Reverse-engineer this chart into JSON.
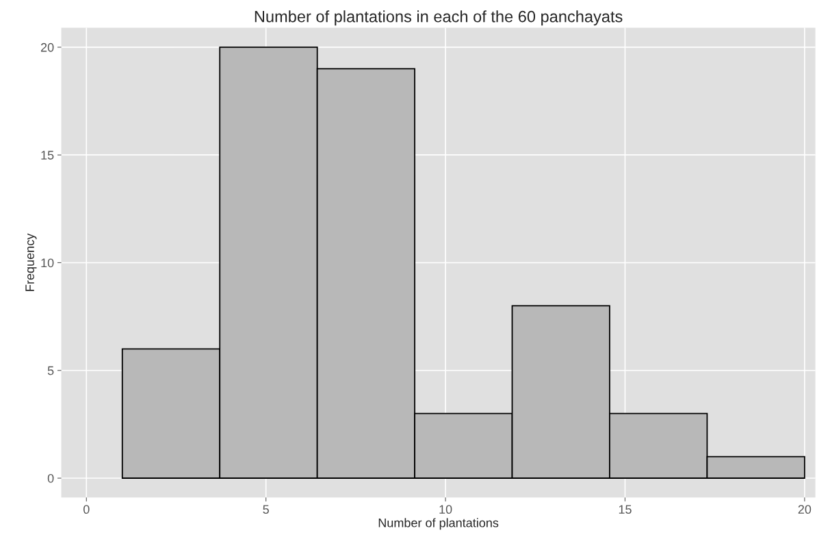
{
  "chart_data": {
    "type": "histogram",
    "title": "Number of plantations in each of the 60 panchayats",
    "xlabel": "Number of plantations",
    "ylabel": "Frequency",
    "bins": [
      1,
      3.714,
      6.429,
      9.143,
      11.857,
      14.571,
      17.286,
      20
    ],
    "values": [
      6,
      20,
      19,
      3,
      8,
      3,
      1
    ],
    "color": "#b8b8b8",
    "xlim": [
      -0.7,
      20.3
    ],
    "ylim": [
      -0.9,
      20.9
    ],
    "xticks": [
      0,
      5,
      10,
      15,
      20
    ],
    "yticks": [
      0,
      5,
      10,
      15,
      20
    ],
    "grid": true
  }
}
